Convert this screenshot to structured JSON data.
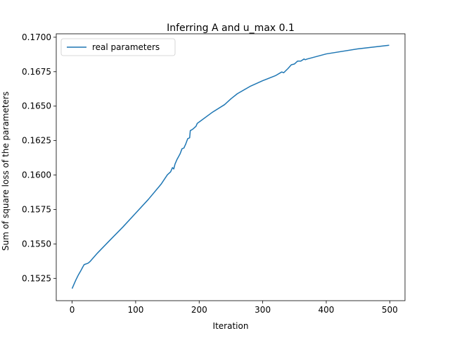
{
  "chart_data": {
    "type": "line",
    "title": "Inferring A and u_max 0.1",
    "xlabel": "Iteration",
    "ylabel": "Sum of square loss of the parameters",
    "x": [
      0,
      3,
      6,
      10,
      14,
      17,
      19,
      25,
      28,
      40,
      60,
      80,
      100,
      120,
      140,
      150,
      155,
      158,
      160,
      162,
      165,
      170,
      173,
      176,
      179,
      182,
      185,
      186,
      190,
      195,
      197,
      200,
      220,
      240,
      250,
      260,
      280,
      300,
      320,
      330,
      333,
      340,
      345,
      350,
      355,
      360,
      365,
      367,
      370,
      400,
      450,
      499
    ],
    "series": [
      {
        "name": "real parameters",
        "color": "#1f77b4",
        "values": [
          0.15176,
          0.15208,
          0.15239,
          0.15276,
          0.15308,
          0.15334,
          0.1535,
          0.1536,
          0.15371,
          0.15434,
          0.15529,
          0.15623,
          0.15723,
          0.15823,
          0.15933,
          0.16002,
          0.16023,
          0.16054,
          0.16044,
          0.1608,
          0.16112,
          0.16154,
          0.16191,
          0.16196,
          0.16227,
          0.16264,
          0.1627,
          0.16322,
          0.16333,
          0.16354,
          0.16375,
          0.16385,
          0.16453,
          0.16511,
          0.16553,
          0.1659,
          0.16643,
          0.16685,
          0.16721,
          0.16748,
          0.16742,
          0.16774,
          0.168,
          0.16806,
          0.16827,
          0.16827,
          0.16842,
          0.16837,
          0.16842,
          0.16879,
          0.16916,
          0.16942
        ]
      }
    ],
    "xlim": [
      -24.95,
      523.95
    ],
    "xticks": [
      0,
      100,
      200,
      300,
      400,
      500
    ],
    "ylim": [
      0.15088,
      0.17025
    ],
    "yticks": [
      0.1525,
      {
        "value": 0.155,
        "label": "0.1550"
      },
      0.1575,
      {
        "value": 0.16,
        "label": "0.1600"
      },
      0.1625,
      {
        "value": 0.165,
        "label": "0.1650"
      },
      0.1675,
      {
        "value": 0.17,
        "label": "0.1700"
      }
    ],
    "legend": "upper left"
  }
}
